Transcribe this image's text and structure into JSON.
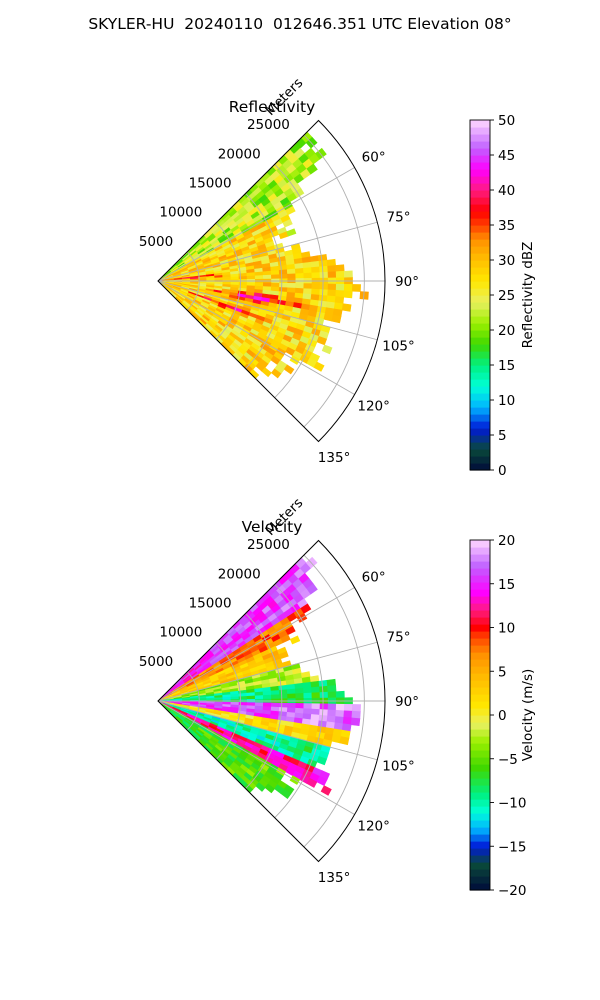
{
  "figure": {
    "title": "SKYLER-HU  20240110  012646.351 UTC Elevation 08°"
  },
  "colors": {
    "grid": "#b0b0b0",
    "edge": "#000000",
    "background": "#ffffff"
  },
  "chart_data": [
    {
      "type": "heatmap",
      "title": "Reflectivity",
      "projection": "polar-sector",
      "radial_label": "Meters",
      "radial_ticks": [
        5000,
        10000,
        15000,
        20000,
        25000
      ],
      "radial_range": [
        0,
        27500
      ],
      "azimuth_range_deg": [
        45,
        135
      ],
      "azimuth_tick_labels": [
        "60°",
        "75°",
        "90°",
        "105°",
        "120°",
        "135°"
      ],
      "azimuth_ticks_deg": [
        60,
        75,
        90,
        105,
        120,
        135
      ],
      "colorbar": {
        "label": "Reflectivity dBZ",
        "range": [
          0,
          50
        ],
        "ticks": [
          0,
          5,
          10,
          15,
          20,
          25,
          30,
          35,
          40,
          45,
          50
        ]
      },
      "colormap_stops": [
        [
          0,
          "#000a3a"
        ],
        [
          3,
          "#0a4a3a"
        ],
        [
          6,
          "#0019d8"
        ],
        [
          9,
          "#00b4ff"
        ],
        [
          12,
          "#00ffd8"
        ],
        [
          15,
          "#00f080"
        ],
        [
          18,
          "#40d800"
        ],
        [
          21,
          "#9cf000"
        ],
        [
          24,
          "#e8f060"
        ],
        [
          27,
          "#ffe800"
        ],
        [
          30,
          "#ffc000"
        ],
        [
          33,
          "#ff9000"
        ],
        [
          35,
          "#ff4000"
        ],
        [
          37,
          "#ff0000"
        ],
        [
          40,
          "#ff1a80"
        ],
        [
          43,
          "#ff00ff"
        ],
        [
          46,
          "#c060ff"
        ],
        [
          50,
          "#ffd8ff"
        ]
      ],
      "field": {
        "base": 28,
        "coverage_max_range": 27500,
        "features": [
          {
            "az": 85,
            "r": 4000,
            "dv": 10,
            "width": 3
          },
          {
            "az": 100,
            "r": 12000,
            "dv": 12,
            "width": 4
          },
          {
            "az": 110,
            "r": 9000,
            "dv": 10,
            "width": 3
          },
          {
            "az": 70,
            "r": 22000,
            "dv": -10,
            "width": 6
          }
        ]
      }
    },
    {
      "type": "heatmap",
      "title": "Velocity",
      "projection": "polar-sector",
      "radial_label": "Meters",
      "radial_ticks": [
        5000,
        10000,
        15000,
        20000,
        25000
      ],
      "radial_range": [
        0,
        27500
      ],
      "azimuth_range_deg": [
        45,
        135
      ],
      "azimuth_tick_labels": [
        "60°",
        "75°",
        "90°",
        "105°",
        "120°",
        "135°"
      ],
      "azimuth_ticks_deg": [
        60,
        75,
        90,
        105,
        120,
        135
      ],
      "colorbar": {
        "label": "Velocity (m/s)",
        "range": [
          -20,
          20
        ],
        "ticks": [
          -20,
          -15,
          -10,
          -5,
          0,
          5,
          10,
          15,
          20
        ]
      },
      "colormap_stops": [
        [
          -20,
          "#000a3a"
        ],
        [
          -17,
          "#0a4a3a"
        ],
        [
          -15,
          "#0019d8"
        ],
        [
          -13,
          "#00b4ff"
        ],
        [
          -11,
          "#00ffd8"
        ],
        [
          -9,
          "#00f080"
        ],
        [
          -6,
          "#40d800"
        ],
        [
          -3,
          "#9cf000"
        ],
        [
          -1,
          "#e8f060"
        ],
        [
          1,
          "#ffe800"
        ],
        [
          4,
          "#ffc000"
        ],
        [
          7,
          "#ff9000"
        ],
        [
          9,
          "#ff4000"
        ],
        [
          10,
          "#ff0000"
        ],
        [
          12,
          "#ff1a80"
        ],
        [
          14,
          "#ff00ff"
        ],
        [
          17,
          "#c060ff"
        ],
        [
          20,
          "#ffd8ff"
        ]
      ],
      "field": {
        "bands": [
          {
            "az_from": 45,
            "az_to": 58,
            "value": 14
          },
          {
            "az_from": 58,
            "az_to": 66,
            "value": 6
          },
          {
            "az_from": 66,
            "az_to": 76,
            "value": 2
          },
          {
            "az_from": 76,
            "az_to": 84,
            "value": -4
          },
          {
            "az_from": 84,
            "az_to": 92,
            "value": -10
          },
          {
            "az_from": 92,
            "az_to": 99,
            "value": 15
          },
          {
            "az_from": 99,
            "az_to": 106,
            "value": 0
          },
          {
            "az_from": 106,
            "az_to": 114,
            "value": -11
          },
          {
            "az_from": 114,
            "az_to": 120,
            "value": 11
          },
          {
            "az_from": 120,
            "az_to": 135,
            "value": -7
          }
        ]
      }
    }
  ]
}
